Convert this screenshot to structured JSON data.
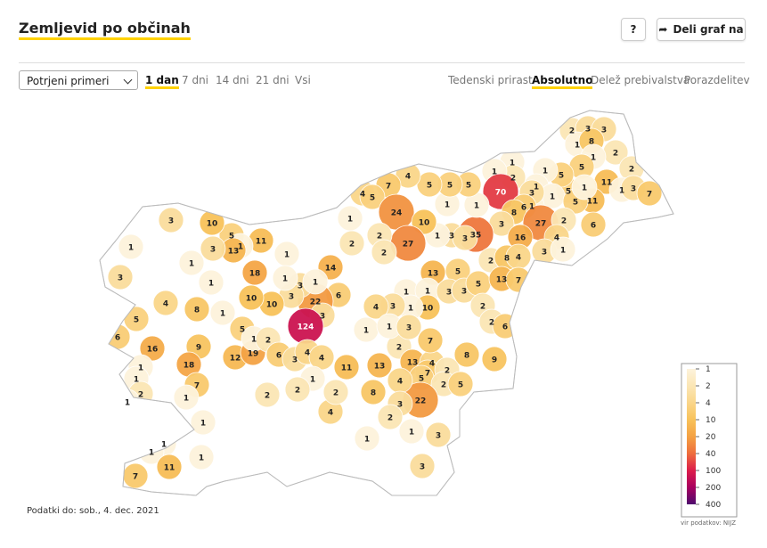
{
  "header": {
    "title": "Zemljevid po občinah",
    "help": "?",
    "share": "Deli graf na"
  },
  "controls": {
    "select": "Potrjeni primeri",
    "periods": [
      "1 dan",
      "7 dni",
      "14 dni",
      "21 dni",
      "Vsi"
    ],
    "active_period": 0,
    "modes": [
      "Tedenski prirast",
      "Absolutno",
      "Delež prebivalstva",
      "Porazdelitev"
    ],
    "active_mode": 1
  },
  "map": {
    "values": [
      2,
      3,
      3,
      1,
      8,
      2,
      1,
      5,
      11,
      2,
      1,
      3,
      7,
      11,
      5,
      5,
      1,
      1,
      1,
      5,
      1,
      1,
      1,
      2,
      1,
      70,
      3,
      6,
      8,
      3,
      27,
      2,
      4,
      6,
      3,
      1,
      16,
      35,
      3,
      3,
      1,
      1,
      1,
      5,
      5,
      5,
      4,
      7,
      4,
      5,
      24,
      10,
      27,
      2,
      2,
      2,
      1,
      1,
      13,
      1,
      5,
      2,
      8,
      4,
      3,
      3,
      5,
      13,
      7,
      2,
      2,
      6,
      10,
      1,
      3,
      4,
      6,
      22,
      3,
      14,
      3,
      3,
      1,
      1,
      1,
      10,
      10,
      18,
      11,
      5,
      1,
      13,
      3,
      10,
      3,
      1,
      1,
      3,
      1,
      4,
      8,
      1,
      5,
      5,
      6,
      16,
      9,
      18,
      12,
      19,
      1,
      2,
      124,
      6,
      3,
      4,
      4,
      1,
      11,
      13,
      2,
      13,
      4,
      7,
      7,
      8,
      9,
      1,
      3,
      5,
      2,
      2,
      5,
      22,
      4,
      3,
      8,
      2,
      1,
      3,
      3,
      1,
      4,
      2,
      1,
      2,
      2,
      7,
      1,
      1,
      2,
      1,
      1,
      1,
      1,
      1,
      1,
      11,
      7
    ],
    "legend": {
      "ticks": [
        1,
        2,
        4,
        10,
        20,
        40,
        100,
        200,
        400
      ],
      "colors": [
        "#fdf3dc",
        "#fbe6b5",
        "#fad68a",
        "#f8c25a",
        "#f4a143",
        "#ee6d3c",
        "#dc1d4a",
        "#a8005f",
        "#4e0b6e"
      ]
    }
  },
  "footer": {
    "date": "Podatki do: sob., 4. dec. 2021",
    "source": "vir podatkov: NIJZ"
  }
}
